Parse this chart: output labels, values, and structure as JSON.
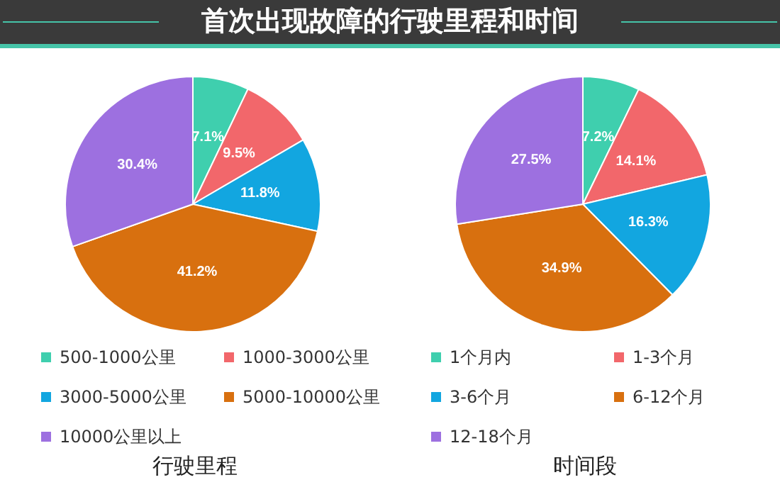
{
  "chart_data": [
    {
      "type": "pie",
      "title": "首次出现故障的行驶里程和时间",
      "subtitle": "行驶里程",
      "categories": [
        "500-1000公里",
        "1000-3000公里",
        "3000-5000公里",
        "5000-10000公里",
        "10000公里以上"
      ],
      "values": [
        7.1,
        9.5,
        11.8,
        41.2,
        30.4
      ],
      "colors": [
        "#3fcfae",
        "#f2676b",
        "#12a6e0",
        "#d8700f",
        "#9d70e0"
      ],
      "value_labels": [
        "7.1%",
        "9.5%",
        "11.8%",
        "41.2%",
        "30.4%"
      ],
      "legend": "bottom"
    },
    {
      "type": "pie",
      "subtitle": "时间段",
      "categories": [
        "1个月内",
        "1-3个月",
        "3-6个月",
        "6-12个月",
        "12-18个月"
      ],
      "values": [
        7.2,
        14.1,
        16.3,
        34.9,
        27.5
      ],
      "colors": [
        "#3fcfae",
        "#f2676b",
        "#12a6e0",
        "#d8700f",
        "#9d70e0"
      ],
      "value_labels": [
        "7.2%",
        "14.1%",
        "16.3%",
        "34.9%",
        "27.5%"
      ],
      "legend": "bottom"
    }
  ]
}
